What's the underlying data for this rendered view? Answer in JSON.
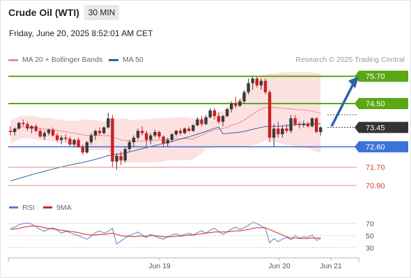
{
  "header": {
    "instrument": "Crude Oil (WTI)",
    "timeframe": "30 MIN",
    "datetime": "Friday, June 20, 2025 8:52:01 AM CET",
    "credit": "Research © 2025 Trading Central"
  },
  "legend": [
    {
      "label": "MA 20 + Bollinger Bands",
      "color": "#f08a8a"
    },
    {
      "label": "MA 50",
      "color": "#2f5f9e"
    }
  ],
  "rsi_legend": [
    {
      "label": "RSI",
      "color": "#5b7fd4"
    },
    {
      "label": "9MA",
      "color": "#e02020"
    }
  ],
  "colors": {
    "resistance": "#5aa814",
    "support": "#3b74d8",
    "lower_support": "#f08a8a",
    "current": "#333333",
    "arrow": "#2d62a8",
    "candle_up": "#3a3a3a",
    "candle_down": "#cc1f1f"
  },
  "chart_data": {
    "type": "candlestick",
    "ylim": [
      70.62,
      76.12
    ],
    "levels": [
      {
        "label": "75.70",
        "value": 75.7,
        "kind": "resistance"
      },
      {
        "label": "74.50",
        "value": 74.5,
        "kind": "resistance"
      },
      {
        "label": "73.45",
        "value": 73.45,
        "kind": "current"
      },
      {
        "label": "72.60",
        "value": 72.6,
        "kind": "support"
      },
      {
        "label": "71.70",
        "value": 71.7,
        "kind": "lower_support"
      },
      {
        "label": "70.90",
        "value": 70.9,
        "kind": "lower_support"
      }
    ],
    "x_ticks": [
      "Jun 19",
      "Jun 20",
      "Jun 21"
    ],
    "arrow": {
      "from": 73.5,
      "to": 75.6
    },
    "candles": [
      [
        73.3,
        73.5,
        73.1,
        73.25
      ],
      [
        73.25,
        73.45,
        73.1,
        73.4
      ],
      [
        73.4,
        73.7,
        73.35,
        73.65
      ],
      [
        73.65,
        73.8,
        73.5,
        73.6
      ],
      [
        73.6,
        73.7,
        73.3,
        73.4
      ],
      [
        73.4,
        73.55,
        73.2,
        73.5
      ],
      [
        73.5,
        73.6,
        73.25,
        73.3
      ],
      [
        73.3,
        73.4,
        73.0,
        73.05
      ],
      [
        73.05,
        73.3,
        72.9,
        73.2
      ],
      [
        73.2,
        73.4,
        73.1,
        73.35
      ],
      [
        73.35,
        73.45,
        73.05,
        73.1
      ],
      [
        73.1,
        73.2,
        72.8,
        72.9
      ],
      [
        72.9,
        73.1,
        72.7,
        73.0
      ],
      [
        73.0,
        73.15,
        72.85,
        72.95
      ],
      [
        72.95,
        73.05,
        72.6,
        72.7
      ],
      [
        72.7,
        72.95,
        72.6,
        72.9
      ],
      [
        72.9,
        73.0,
        72.55,
        72.6
      ],
      [
        72.6,
        72.7,
        72.25,
        72.35
      ],
      [
        72.35,
        72.85,
        72.3,
        72.8
      ],
      [
        72.8,
        73.2,
        72.7,
        73.1
      ],
      [
        73.1,
        73.35,
        72.9,
        73.3
      ],
      [
        73.3,
        73.45,
        73.1,
        73.2
      ],
      [
        73.2,
        73.5,
        73.15,
        73.45
      ],
      [
        73.45,
        74.1,
        73.4,
        73.85
      ],
      [
        73.85,
        74.0,
        71.7,
        71.95
      ],
      [
        71.95,
        72.3,
        71.6,
        72.2
      ],
      [
        72.2,
        72.4,
        71.8,
        72.0
      ],
      [
        72.0,
        72.6,
        71.9,
        72.5
      ],
      [
        72.5,
        72.9,
        72.4,
        72.8
      ],
      [
        72.8,
        73.1,
        72.6,
        73.0
      ],
      [
        73.0,
        73.4,
        72.9,
        73.3
      ],
      [
        73.3,
        73.5,
        73.1,
        73.2
      ],
      [
        73.2,
        73.3,
        72.6,
        72.9
      ],
      [
        72.9,
        73.2,
        72.7,
        73.1
      ],
      [
        73.1,
        73.35,
        73.0,
        73.25
      ],
      [
        73.25,
        73.3,
        72.95,
        73.05
      ],
      [
        73.05,
        73.1,
        72.6,
        72.75
      ],
      [
        72.75,
        73.0,
        72.6,
        72.9
      ],
      [
        72.9,
        73.2,
        72.8,
        73.15
      ],
      [
        73.15,
        73.35,
        73.05,
        73.3
      ],
      [
        73.3,
        73.4,
        73.1,
        73.2
      ],
      [
        73.2,
        73.45,
        73.15,
        73.4
      ],
      [
        73.4,
        73.5,
        73.25,
        73.3
      ],
      [
        73.3,
        73.6,
        73.25,
        73.55
      ],
      [
        73.55,
        73.9,
        73.5,
        73.8
      ],
      [
        73.8,
        73.95,
        73.5,
        73.6
      ],
      [
        73.6,
        74.0,
        73.55,
        73.9
      ],
      [
        73.9,
        74.3,
        73.85,
        74.2
      ],
      [
        74.2,
        74.3,
        73.8,
        73.95
      ],
      [
        73.95,
        74.1,
        73.6,
        73.7
      ],
      [
        73.7,
        74.0,
        73.5,
        73.95
      ],
      [
        73.95,
        74.3,
        73.9,
        74.25
      ],
      [
        74.25,
        74.6,
        74.1,
        74.5
      ],
      [
        74.5,
        74.8,
        74.3,
        74.4
      ],
      [
        74.4,
        74.7,
        74.35,
        74.6
      ],
      [
        74.6,
        75.1,
        74.5,
        75.0
      ],
      [
        75.0,
        75.6,
        74.9,
        75.4
      ],
      [
        75.4,
        75.7,
        75.1,
        75.6
      ],
      [
        75.6,
        75.7,
        75.2,
        75.3
      ],
      [
        75.3,
        75.6,
        75.1,
        75.5
      ],
      [
        75.5,
        75.6,
        74.9,
        75.0
      ],
      [
        75.0,
        75.1,
        72.8,
        73.0
      ],
      [
        73.0,
        73.6,
        72.6,
        73.4
      ],
      [
        73.4,
        73.7,
        73.0,
        73.15
      ],
      [
        73.15,
        73.5,
        73.0,
        73.4
      ],
      [
        73.4,
        73.6,
        73.2,
        73.3
      ],
      [
        73.3,
        74.0,
        73.2,
        73.85
      ],
      [
        73.85,
        74.0,
        73.5,
        73.6
      ],
      [
        73.6,
        73.7,
        73.4,
        73.55
      ],
      [
        73.55,
        73.75,
        73.45,
        73.6
      ],
      [
        73.6,
        73.7,
        73.45,
        73.5
      ],
      [
        73.5,
        73.9,
        73.45,
        73.85
      ],
      [
        73.85,
        73.9,
        73.2,
        73.25
      ],
      [
        73.25,
        73.5,
        73.1,
        73.45
      ]
    ]
  },
  "rsi": {
    "levels": [
      "70",
      "50",
      "30"
    ],
    "rsi_values": [
      62,
      64,
      68,
      70,
      71,
      69,
      65,
      60,
      57,
      61,
      63,
      59,
      54,
      57,
      55,
      52,
      50,
      47,
      44,
      49,
      55,
      58,
      54,
      57,
      62,
      36,
      41,
      46,
      50,
      53,
      56,
      51,
      47,
      52,
      49,
      46,
      44,
      48,
      51,
      53,
      50,
      52,
      54,
      51,
      55,
      58,
      54,
      59,
      62,
      57,
      52,
      56,
      61,
      64,
      60,
      63,
      67,
      72,
      70,
      66,
      62,
      38,
      45,
      40,
      44,
      47,
      43,
      50,
      46,
      48,
      47,
      51,
      42,
      45
    ],
    "ma_values": [
      60,
      61,
      62,
      64,
      65,
      66,
      66,
      65,
      63,
      62,
      61,
      60,
      59,
      58,
      57,
      56,
      55,
      53,
      52,
      51,
      51,
      52,
      52,
      53,
      54,
      52,
      50,
      49,
      49,
      48,
      49,
      49,
      49,
      50,
      50,
      49,
      48,
      48,
      48,
      49,
      49,
      50,
      51,
      51,
      52,
      53,
      54,
      55,
      56,
      56,
      56,
      56,
      57,
      58,
      58,
      59,
      60,
      62,
      63,
      63,
      63,
      60,
      57,
      54,
      51,
      48,
      46,
      46,
      45,
      45,
      45,
      46,
      46,
      46
    ]
  }
}
